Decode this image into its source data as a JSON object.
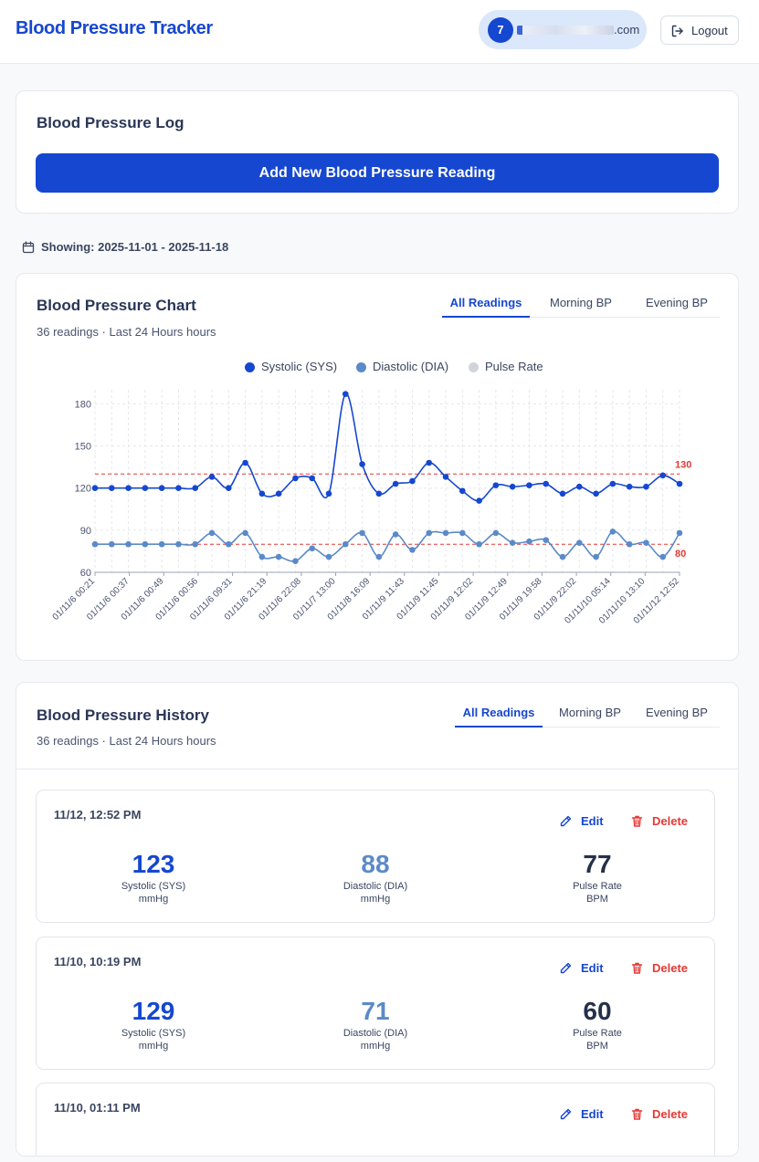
{
  "header": {
    "title": "Blood Pressure Tracker",
    "user_initial": "7",
    "email_suffix": "com",
    "logout_label": "Logout"
  },
  "log": {
    "title": "Blood Pressure Log",
    "add_button": "Add New Blood Pressure Reading"
  },
  "range": {
    "text": "Showing: 2025-11-01 - 2025-11-18"
  },
  "chart_card": {
    "title": "Blood Pressure Chart",
    "subtitle": "36 readings · Last 24 Hours hours",
    "tabs": [
      "All Readings",
      "Morning BP",
      "Evening BP"
    ],
    "active_tab": 0
  },
  "history": {
    "title": "Blood Pressure History",
    "subtitle": "36 readings · Last 24 Hours hours",
    "tabs": [
      "All Readings",
      "Morning BP",
      "Evening BP"
    ],
    "edit_label": "Edit",
    "delete_label": "Delete",
    "sys_label": "Systolic (SYS)",
    "dia_label": "Diastolic (DIA)",
    "pulse_label": "Pulse Rate",
    "mmhg": "mmHg",
    "bpm": "BPM",
    "entries": [
      {
        "time": "11/12, 12:52 PM",
        "sys": "123",
        "dia": "88",
        "pulse": "77"
      },
      {
        "time": "11/10, 10:19 PM",
        "sys": "129",
        "dia": "71",
        "pulse": "60"
      },
      {
        "time": "11/10, 01:11 PM",
        "sys": "",
        "dia": "",
        "pulse": ""
      }
    ]
  },
  "colors": {
    "primary": "#1547d0",
    "diastolic": "#5b8ac8",
    "pulse": "#d1d5db",
    "threshold": "#e53935"
  },
  "chart_data": {
    "type": "line",
    "legend": [
      "Systolic (SYS)",
      "Diastolic (DIA)",
      "Pulse Rate"
    ],
    "legend_position": "top",
    "grid": true,
    "ylim": [
      60,
      190
    ],
    "yticks": [
      60,
      90,
      120,
      150,
      180
    ],
    "x_tick_labels": [
      "01/11/6 00:21",
      "01/11/6 00:37",
      "01/11/6 00:49",
      "01/11/6 00:56",
      "01/11/6 09:31",
      "01/11/6 21:19",
      "01/11/6 22:08",
      "01/11/7 13:00",
      "01/11/8 16:09",
      "01/11/9 11:43",
      "01/11/9 11:45",
      "01/11/9 12:02",
      "01/11/9 12:49",
      "01/11/9 19:58",
      "01/11/9 22:02",
      "01/11/10 05:14",
      "01/11/10 13:10",
      "01/11/12 12:52"
    ],
    "thresholds": [
      {
        "label": "130",
        "value": 130
      },
      {
        "label": "80",
        "value": 80
      }
    ],
    "series": [
      {
        "name": "Systolic (SYS)",
        "values": [
          120,
          120,
          120,
          120,
          120,
          120,
          120,
          128,
          120,
          138,
          116,
          116,
          127,
          127,
          116,
          187,
          137,
          116,
          123,
          125,
          138,
          128,
          118,
          111,
          122,
          121,
          122,
          123,
          116,
          121,
          116,
          123,
          121,
          121,
          129,
          123
        ]
      },
      {
        "name": "Diastolic (DIA)",
        "values": [
          80,
          80,
          80,
          80,
          80,
          80,
          80,
          88,
          80,
          88,
          71,
          71,
          68,
          77,
          71,
          80,
          88,
          71,
          87,
          76,
          88,
          88,
          88,
          80,
          88,
          81,
          82,
          83,
          71,
          81,
          71,
          89,
          80,
          81,
          71,
          88
        ]
      },
      {
        "name": "Pulse Rate",
        "values": []
      }
    ]
  }
}
